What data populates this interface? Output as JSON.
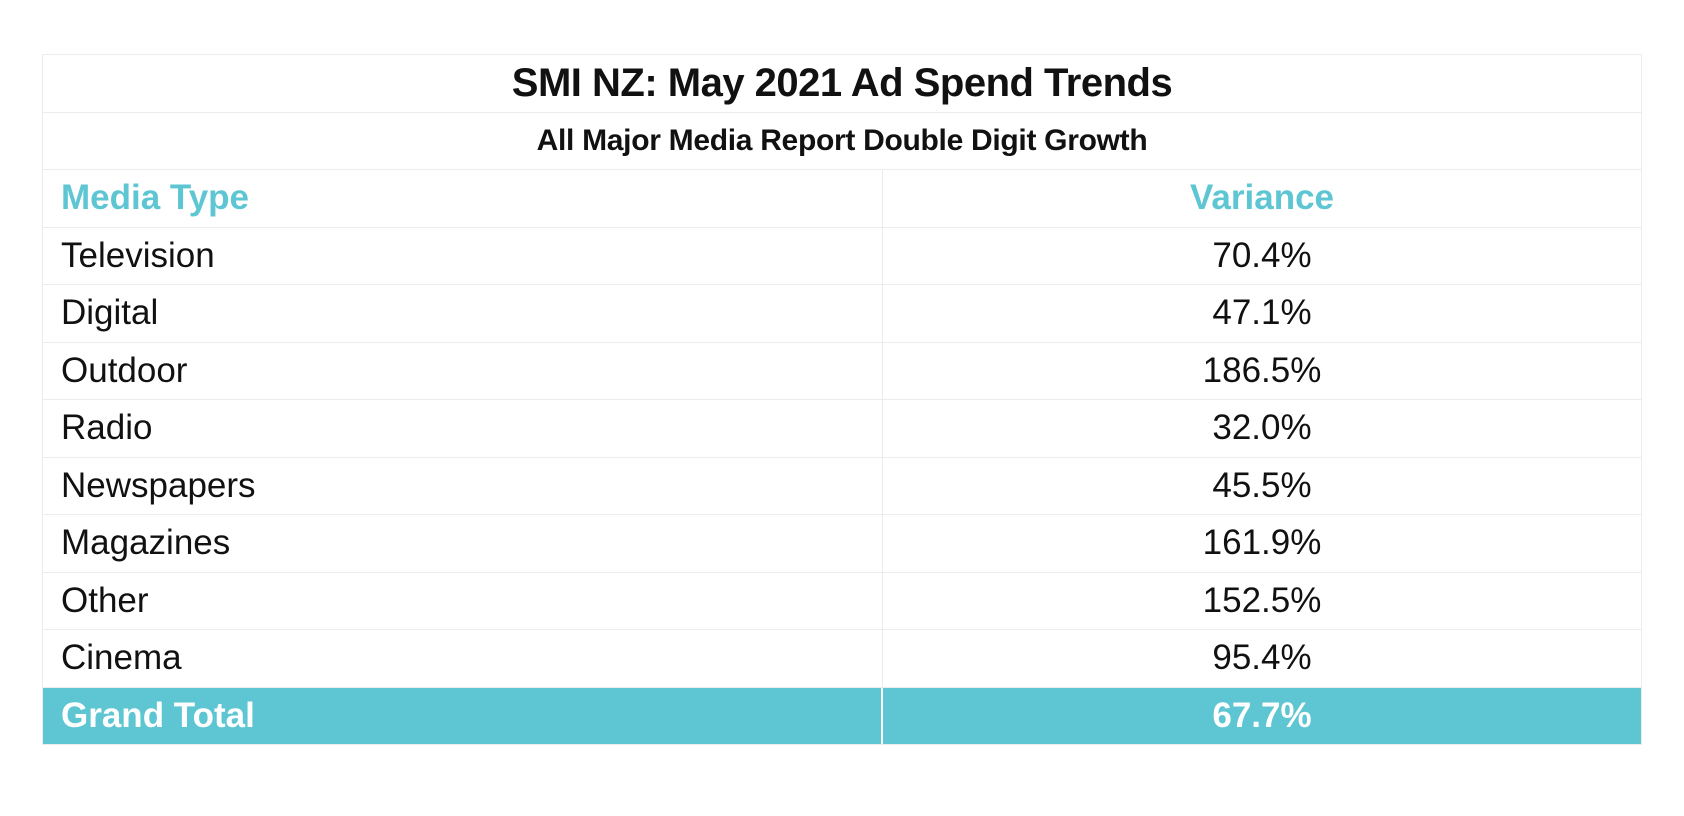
{
  "chart_data": {
    "type": "table",
    "title": "SMI NZ: May 2021 Ad Spend Trends",
    "subtitle": "All Major Media Report Double Digit Growth",
    "columns": [
      "Media Type",
      "Variance"
    ],
    "rows": [
      {
        "media": "Television",
        "variance": "70.4%"
      },
      {
        "media": "Digital",
        "variance": "47.1%"
      },
      {
        "media": "Outdoor",
        "variance": "186.5%"
      },
      {
        "media": "Radio",
        "variance": "32.0%"
      },
      {
        "media": "Newspapers",
        "variance": "45.5%"
      },
      {
        "media": "Magazines",
        "variance": "161.9%"
      },
      {
        "media": "Other",
        "variance": "152.5%"
      },
      {
        "media": "Cinema",
        "variance": "95.4%"
      }
    ],
    "total": {
      "media": "Grand Total",
      "variance": "67.7%"
    }
  },
  "colors": {
    "accent": "#5ec6d3",
    "text": "#111111",
    "border": "#ececec"
  }
}
